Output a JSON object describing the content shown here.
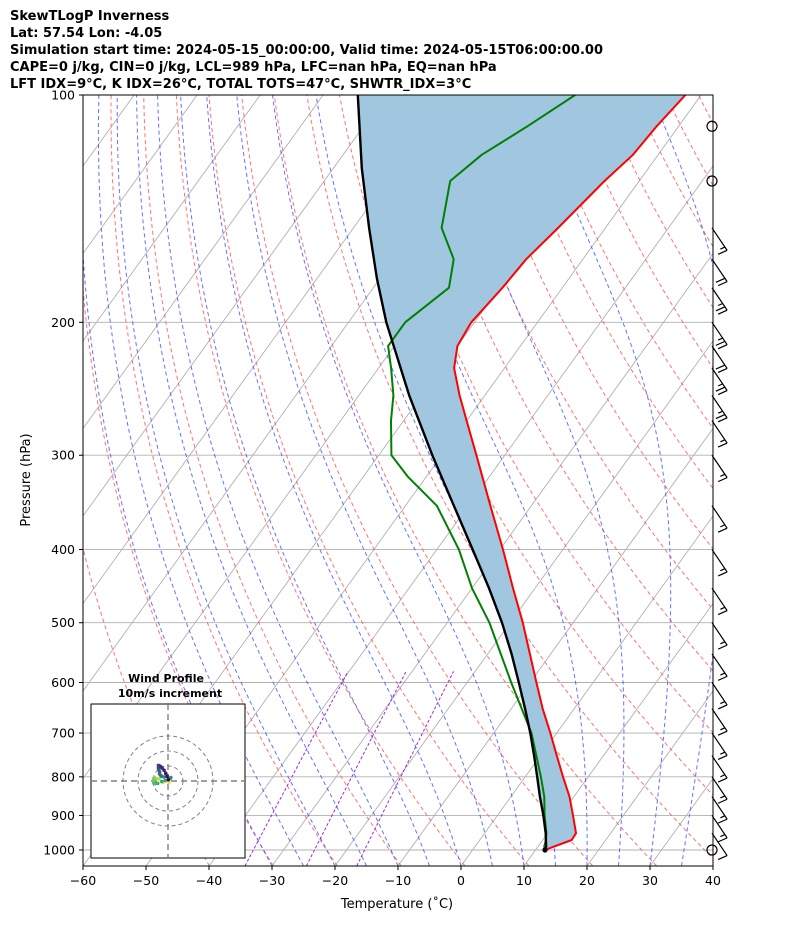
{
  "header": {
    "line1": "SkewTLogP Inverness",
    "line2": "Lat: 57.54   Lon: -4.05",
    "line3": "Simulation start time: 2024-05-15_00:00:00, Valid time: 2024-05-15T06:00:00.00",
    "line4": "CAPE=0 j/kg, CIN=0 j/kg, LCL=989 hPa, LFC=nan hPa, EQ=nan hPa",
    "line5": "LFT IDX=9°C, K IDX=26°C, TOTAL TOTS=47°C, SHWTR_IDX=3°C"
  },
  "chart_data": [
    {
      "type": "line",
      "subtype": "skew-t log-p",
      "xlabel": "Temperature (˚C)",
      "ylabel": "Pressure (hPa)",
      "xlim": [
        -60,
        40
      ],
      "ylim": [
        1050,
        100
      ],
      "y_scale": "log",
      "x_ticks": [
        "−60",
        "−50",
        "−40",
        "−30",
        "−20",
        "−10",
        "0",
        "10",
        "20",
        "30",
        "40"
      ],
      "y_ticks": [
        "100",
        "200",
        "300",
        "400",
        "500",
        "600",
        "700",
        "800",
        "900",
        "1000"
      ],
      "grid": true,
      "series": [
        {
          "role": "temperature",
          "color": "#ff0000",
          "p": [
            1000,
            990,
            970,
            950,
            900,
            850,
            800,
            750,
            700,
            650,
            600,
            550,
            500,
            450,
            400,
            350,
            300,
            270,
            250,
            230,
            215,
            200,
            180,
            165,
            150,
            130,
            120,
            110,
            100
          ],
          "t": [
            11.5,
            12.5,
            14.6,
            14.5,
            12.0,
            9.3,
            6.0,
            2.6,
            -1.0,
            -5.0,
            -9.0,
            -13.3,
            -18.0,
            -23.5,
            -29.5,
            -36.5,
            -44.5,
            -50.0,
            -54.0,
            -58.0,
            -60.0,
            -60.5,
            -59.5,
            -59.0,
            -57.5,
            -55.5,
            -54.0,
            -53.5,
            -52.5
          ]
        },
        {
          "role": "dewpoint",
          "color": "#008000",
          "p": [
            1000,
            990,
            970,
            950,
            900,
            850,
            800,
            700,
            600,
            500,
            450,
            400,
            350,
            320,
            300,
            270,
            250,
            230,
            215,
            200,
            180,
            165,
            150,
            130,
            120,
            110,
            100
          ],
          "t": [
            11.5,
            11.0,
            10.5,
            9.8,
            7.5,
            5.3,
            2.5,
            -4.0,
            -13.0,
            -23.3,
            -30.0,
            -36.5,
            -45.0,
            -53.0,
            -58.0,
            -62.0,
            -64.5,
            -68.0,
            -71.0,
            -71.0,
            -68.0,
            -70.5,
            -76.0,
            -80.0,
            -78.0,
            -74.0,
            -70.0
          ]
        },
        {
          "role": "parcel-profile",
          "color": "#000000",
          "p": [
            1000,
            990,
            950,
            900,
            850,
            800,
            750,
            700,
            650,
            600,
            550,
            500,
            450,
            400,
            350,
            300,
            250,
            200,
            175,
            150,
            125,
            100
          ],
          "t": [
            11.5,
            11.3,
            9.7,
            7.3,
            4.6,
            1.9,
            -1.0,
            -4.2,
            -7.8,
            -11.8,
            -16.2,
            -21.3,
            -27.3,
            -34.3,
            -42.3,
            -51.5,
            -62.0,
            -74.0,
            -80.5,
            -87.5,
            -95.5,
            -104.5
          ]
        }
      ],
      "shaded_area": {
        "between": [
          "temperature",
          "parcel-profile"
        ],
        "color": "#a1c7e0"
      },
      "background_lines": {
        "isotherms": {
          "color": "#b0b0b0",
          "step_degC": 10
        },
        "dry_adiabats": {
          "color": "#ff5a5a",
          "style": "dashed"
        },
        "moist_adiabats": {
          "color": "#3c50ff",
          "style": "dashed"
        },
        "mixing_ratio": {
          "color": "#9400d3",
          "style": "dashed"
        }
      },
      "wind_barbs": {
        "position": "right edge",
        "p": [
          1000,
          950,
          900,
          850,
          800,
          750,
          700,
          650,
          600,
          550,
          500,
          450,
          400,
          350,
          300,
          270,
          250,
          230,
          215,
          200,
          180,
          165,
          150,
          130,
          110
        ],
        "barbs_kt": [
          0,
          10,
          15,
          15,
          15,
          15,
          15,
          15,
          15,
          15,
          15,
          15,
          15,
          15,
          15,
          15,
          25,
          25,
          20,
          25,
          25,
          20,
          15,
          0,
          0
        ]
      }
    },
    {
      "type": "scatter",
      "subtype": "hodograph",
      "title": "Wind Profile",
      "subtitle": "10m/s increment",
      "rings_ms": [
        10,
        20,
        30
      ],
      "u": [
        0,
        0.6,
        -3.5,
        -6.0,
        -8.0,
        -9.2,
        -9.5,
        -9.7,
        -9.3,
        -9.5,
        -8.6,
        -7.8,
        -6.8,
        -4.2,
        -1.9,
        0.2,
        1.4,
        1.9,
        -2.5,
        -4.2,
        -4.8,
        -5.6,
        -5.6,
        -6.2,
        -6.4,
        -6.1,
        -6.4,
        -5.4,
        -4.7,
        -3.9,
        -2.6,
        -1.5,
        -0.5,
        0.2
      ],
      "v": [
        0,
        -1.0,
        -0.8,
        1.4,
        1.7,
        2.3,
        1.6,
        0.4,
        -0.9,
        -1.4,
        -1.7,
        -1.5,
        -1.6,
        -0.3,
        0.3,
        1.0,
        1.6,
        2.3,
        2.7,
        3.0,
        3.7,
        4.7,
        6.2,
        7.6,
        8.7,
        9.8,
        10.4,
        10.0,
        9.5,
        8.6,
        7.1,
        5.1,
        3.2,
        0.9
      ]
    }
  ]
}
